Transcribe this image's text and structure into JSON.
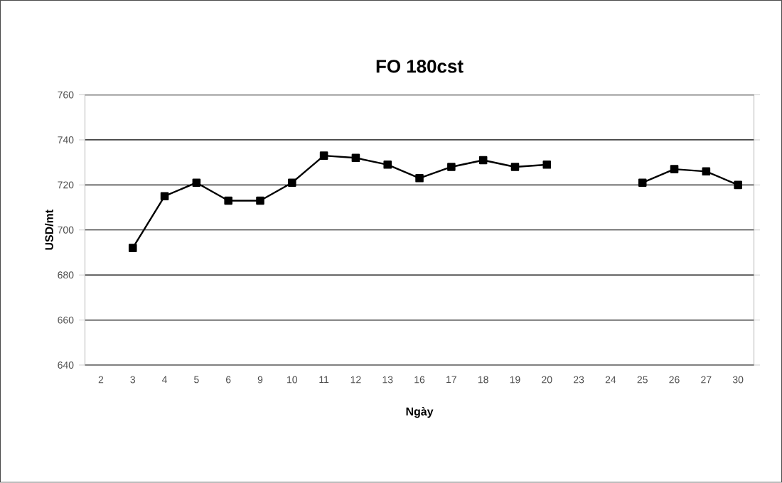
{
  "chart_data": {
    "type": "line",
    "title": "FO 180cst",
    "xlabel": "Ngày",
    "ylabel": "USD/mt",
    "categories": [
      "2",
      "3",
      "4",
      "5",
      "6",
      "9",
      "10",
      "11",
      "12",
      "13",
      "16",
      "17",
      "18",
      "19",
      "20",
      "23",
      "24",
      "25",
      "26",
      "27",
      "30"
    ],
    "series": [
      {
        "color": "#000000",
        "values": [
          null,
          692,
          715,
          721,
          713,
          713,
          721,
          733,
          732,
          729,
          723,
          728,
          731,
          728,
          729,
          null,
          null,
          721,
          727,
          726,
          720
        ]
      }
    ],
    "ylim": [
      640,
      760
    ],
    "yticks": [
      640,
      660,
      680,
      700,
      720,
      740,
      760
    ],
    "grid": "y",
    "marker": "square",
    "line_style": "solid"
  }
}
